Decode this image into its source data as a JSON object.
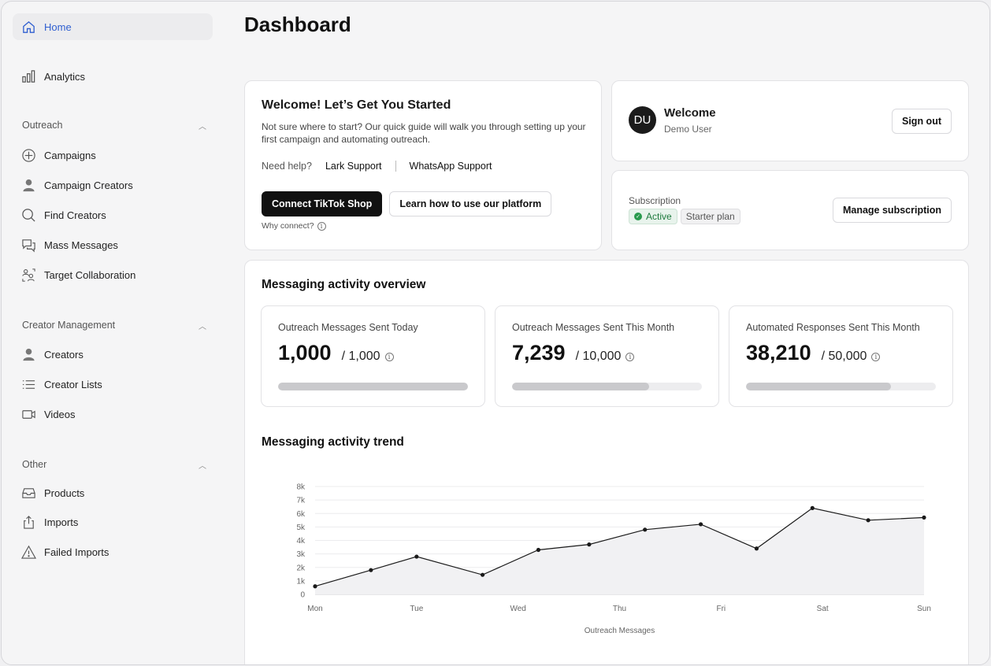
{
  "sidebar": {
    "home": "Home",
    "analytics": "Analytics",
    "outreach": {
      "title": "Outreach",
      "items": [
        "Campaigns",
        "Campaign Creators",
        "Find Creators",
        "Mass Messages",
        "Target Collaboration"
      ]
    },
    "creator_management": {
      "title": "Creator Management",
      "items": [
        "Creators",
        "Creator Lists",
        "Videos"
      ]
    },
    "other": {
      "title": "Other",
      "items": [
        "Products",
        "Imports",
        "Failed Imports"
      ]
    }
  },
  "header": {
    "title": "Dashboard"
  },
  "welcome": {
    "title": "Welcome! Let’s Get You Started",
    "description": "Not sure where to start? Our quick guide will walk you through setting up your first campaign and automating outreach.",
    "help_label": "Need help?",
    "lark_support": "Lark Support",
    "whatsapp_support": "WhatsApp Support",
    "connect_button": "Connect TikTok Shop",
    "learn_button": "Learn how to use our platform",
    "why_connect": "Why connect?"
  },
  "user": {
    "initials": "DU",
    "greeting": "Welcome",
    "name": "Demo User",
    "sign_out": "Sign out"
  },
  "subscription": {
    "label": "Subscription",
    "status": "Active",
    "plan": "Starter plan",
    "manage_button": "Manage subscription",
    "status_color": "#2a9a4e"
  },
  "overview": {
    "title": "Messaging activity overview",
    "stats": [
      {
        "label": "Outreach Messages Sent Today",
        "value": "1,000",
        "limit": "/ 1,000",
        "progress": 1.0
      },
      {
        "label": "Outreach Messages Sent This Month",
        "value": "7,239",
        "limit": "/ 10,000",
        "progress": 0.7239
      },
      {
        "label": "Automated Responses Sent This Month",
        "value": "38,210",
        "limit": "/ 50,000",
        "progress": 0.7642
      }
    ]
  },
  "trend": {
    "title": "Messaging activity trend"
  },
  "chart_data": {
    "type": "area",
    "xlabel": "Outreach Messages",
    "ylabel": "",
    "categories": [
      "Mon",
      "Tue",
      "Wed",
      "Thu",
      "Fri",
      "Sat",
      "Sun"
    ],
    "yticks": [
      "0",
      "1k",
      "2k",
      "3k",
      "4k",
      "5k",
      "6k",
      "7k",
      "8k"
    ],
    "ylim": [
      0,
      8000
    ],
    "grid": true,
    "series": [
      {
        "x": [
          0,
          0.55,
          1.0,
          1.65,
          2.2,
          2.7,
          3.25,
          3.8,
          4.35,
          4.9,
          5.45,
          6.0
        ],
        "values": [
          600,
          1800,
          2800,
          1450,
          3300,
          3700,
          4800,
          5200,
          3400,
          6400,
          5500,
          5700
        ]
      }
    ]
  }
}
